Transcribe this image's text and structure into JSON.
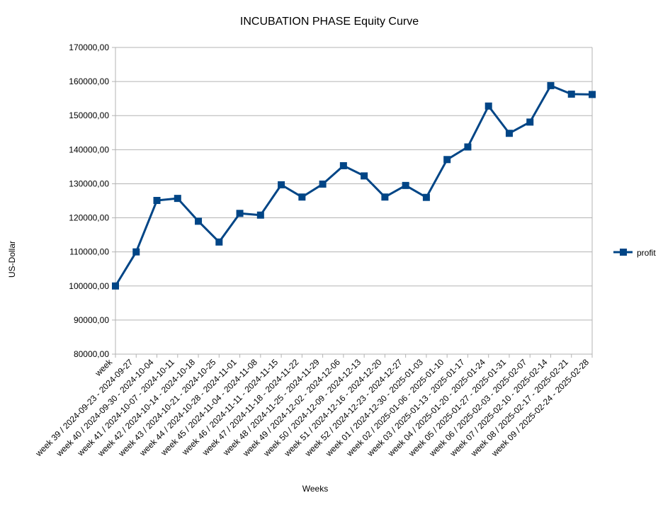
{
  "chart_data": {
    "type": "line",
    "title": "INCUBATION PHASE Equity Curve",
    "xlabel": "Weeks",
    "ylabel": "US-Dollar",
    "ylim": [
      80000,
      170000
    ],
    "ytick_step": 10000,
    "ytick_labels": [
      "80000,00",
      "90000,00",
      "100000,00",
      "110000,00",
      "120000,00",
      "130000,00",
      "140000,00",
      "150000,00",
      "160000,00",
      "170000,00"
    ],
    "grid": true,
    "legend_position": "right",
    "color": "#004586",
    "categories": [
      "week",
      "week 39 / 2024-09-23 - 2024-09-27",
      "week 40 / 2024-09-30 - 2024-10-04",
      "week 41 / 2024-10-07 - 2024-10-11",
      "week 42 / 2024-10-14 - 2024-10-18",
      "week 43 / 2024-10-21 - 2024-10-25",
      "week 44 / 2024-10-28 - 2024-11-01",
      "week 45 / 2024-11-04 - 2024-11-08",
      "week 46 / 2024-11-11 - 2024-11-15",
      "week 47 / 2024-11-18 - 2024-11-22",
      "week 48 / 2024-11-25 - 2024-11-29",
      "week 49 / 2024-12-02 - 2024-12-06",
      "week 50 / 2024-12-09 - 2024-12-13",
      "week 51 / 2024-12-16 - 2024-12-20",
      "week 52 / 2024-12-23 - 2024-12-27",
      "week 01 / 2024-12-30 - 2025-01-03",
      "week 02 / 2025-01-06 - 2025-01-10",
      "week 03 / 2025-01-13 - 2025-01-17",
      "week 04 / 2025-01-20 - 2025-01-24",
      "week 05 / 2025-01-27 - 2025-01-31",
      "week 06 / 2025-02-03 - 2025-02-07",
      "week 07 / 2025-02-10 - 2025-02-14",
      "week 08 / 2025-02-17 - 2025-02-21",
      "week 09 / 2025-02-24 - 2025-02-28"
    ],
    "series": [
      {
        "name": "profit",
        "values": [
          100000,
          110000,
          125100,
          125700,
          119000,
          112900,
          121300,
          120800,
          129700,
          126100,
          129900,
          135300,
          132300,
          126100,
          129500,
          126000,
          137100,
          140800,
          152800,
          144800,
          148100,
          158800,
          156300,
          156200
        ]
      }
    ]
  }
}
